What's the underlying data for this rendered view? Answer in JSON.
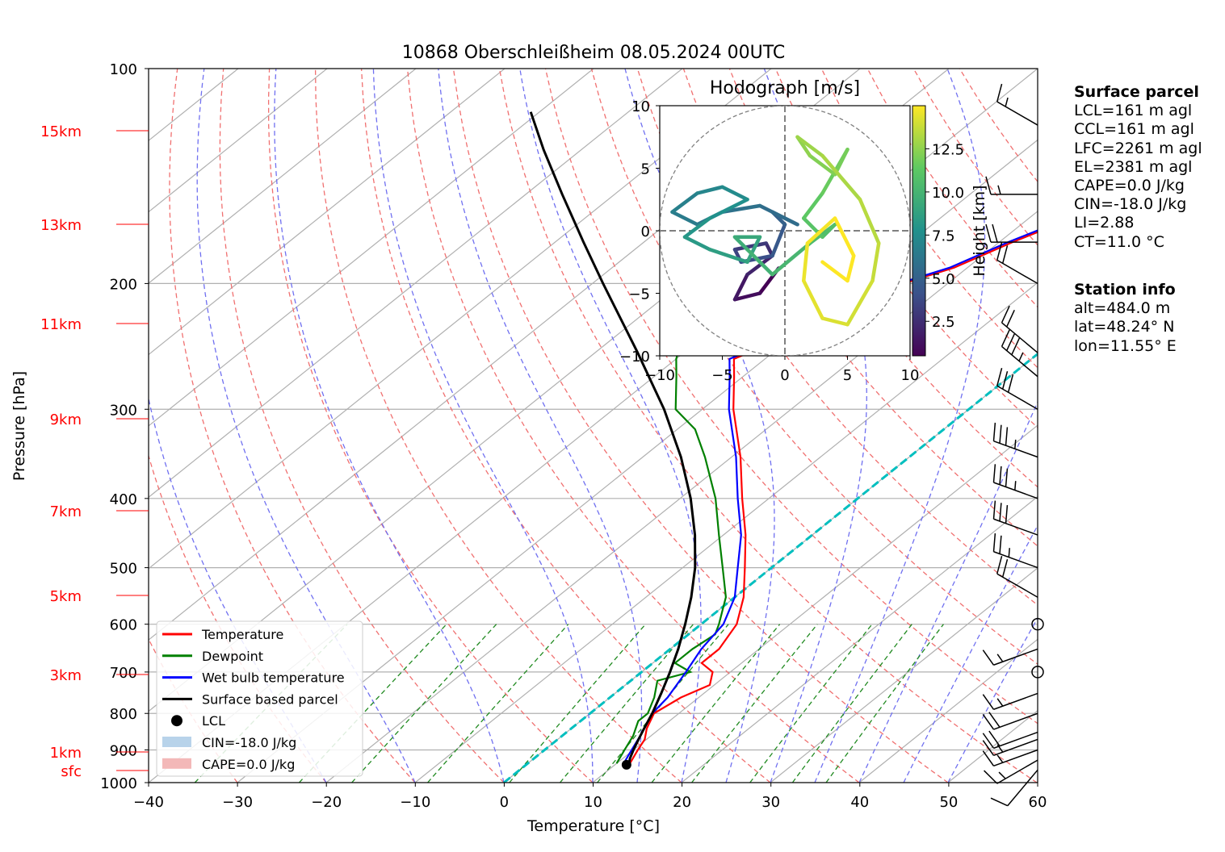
{
  "title": "10868 Oberschleißheim 08.05.2024 00UTC",
  "axes": {
    "xlabel": "Temperature [°C]",
    "ylabel": "Pressure [hPa]",
    "x_ticks": [
      "−40",
      "−30",
      "−20",
      "−10",
      "0",
      "10",
      "20",
      "30",
      "40",
      "50",
      "60"
    ],
    "p_ticks": [
      "100",
      "200",
      "300",
      "400",
      "500",
      "600",
      "700",
      "800",
      "900",
      "1000"
    ],
    "height_labels": [
      "15km",
      "13km",
      "11km",
      "9km",
      "7km",
      "5km",
      "3km",
      "1km",
      "sfc"
    ]
  },
  "legend": [
    {
      "label": "Temperature",
      "color": "#ff0000",
      "kind": "line"
    },
    {
      "label": "Dewpoint",
      "color": "#008000",
      "kind": "line"
    },
    {
      "label": "Wet bulb temperature",
      "color": "#0000ff",
      "kind": "line"
    },
    {
      "label": "Surface based parcel",
      "color": "#000000",
      "kind": "line"
    },
    {
      "label": "LCL",
      "color": "#000000",
      "kind": "dot"
    },
    {
      "label": "CIN=-18.0 J/kg",
      "color": "#b8d3ea",
      "kind": "patch"
    },
    {
      "label": "CAPE=0.0 J/kg",
      "color": "#f3b8b8",
      "kind": "patch"
    }
  ],
  "hodograph": {
    "title": "Hodograph [m/s]",
    "ticks": [
      "−10",
      "−5",
      "0",
      "5",
      "10"
    ],
    "colorbar_label": "Height [km]",
    "colorbar_ticks": [
      "2.5",
      "5.0",
      "7.5",
      "10.0",
      "12.5"
    ]
  },
  "surface_parcel": {
    "heading": "Surface parcel",
    "lines": [
      "LCL=161 m agl",
      "CCL=161 m agl",
      "LFC=2261 m agl",
      "EL=2381 m agl",
      "CAPE=0.0 J/kg",
      "CIN=-18.0 J/kg",
      "LI=2.88",
      "CT=11.0 °C"
    ]
  },
  "station_info": {
    "heading": "Station info",
    "lines": [
      "alt=484.0 m",
      "lat=48.24° N",
      "lon=11.55° E"
    ]
  },
  "chart_data": {
    "type": "line",
    "title": "10868 Oberschleißheim 08.05.2024 00UTC",
    "xlabel": "Temperature [°C]",
    "ylabel": "Pressure [hPa]",
    "xlim": [
      -40,
      60
    ],
    "ylim": [
      1000,
      100
    ],
    "y_scale": "log",
    "skew": "skew-T",
    "grid": true,
    "legend_position": "lower-left",
    "series": [
      {
        "name": "Temperature",
        "color": "#ff0000",
        "p": [
          940,
          900,
          870,
          840,
          800,
          760,
          730,
          700,
          680,
          650,
          600,
          550,
          500,
          450,
          400,
          350,
          300,
          270,
          255,
          240,
          225,
          210,
          200,
          190,
          175,
          160,
          150,
          140,
          130,
          122
        ],
        "t": [
          11.5,
          10.5,
          9.8,
          8.5,
          7.2,
          8.0,
          9.5,
          8.0,
          5.5,
          5.5,
          4.0,
          1.0,
          -3.0,
          -7.5,
          -13.0,
          -19.0,
          -26.5,
          -31.0,
          -33.5,
          -31.0,
          -28.5,
          -26.0,
          -25.0,
          -21.5,
          -18.5,
          -14.5,
          -11.5,
          -11.0,
          -6.0,
          -3.5
        ]
      },
      {
        "name": "Dewpoint",
        "color": "#008000",
        "p": [
          940,
          900,
          860,
          820,
          800,
          760,
          720,
          700,
          680,
          650,
          620,
          600,
          550,
          500,
          450,
          400,
          350,
          320,
          300,
          270,
          255,
          240,
          225,
          210,
          200,
          190,
          180,
          170,
          160,
          150,
          140,
          130,
          123
        ],
        "t": [
          10.0,
          9.0,
          8.0,
          6.5,
          6.5,
          5.0,
          3.0,
          5.5,
          2.5,
          2.5,
          3.0,
          2.0,
          -1.0,
          -5.5,
          -10.5,
          -16.0,
          -23.0,
          -28.0,
          -33.0,
          -37.5,
          -40.0,
          -42.0,
          -45.0,
          -47.0,
          -48.0,
          -50.0,
          -52.0,
          -54.0,
          -57.0,
          -58.0,
          -59.0,
          -61.0,
          -60.0
        ]
      },
      {
        "name": "Wet bulb temperature",
        "color": "#0000ff",
        "p": [
          940,
          900,
          860,
          800,
          760,
          700,
          650,
          600,
          550,
          500,
          450,
          400,
          350,
          300,
          270,
          255,
          240,
          225,
          210,
          200,
          190,
          175,
          160,
          150,
          140,
          130,
          122
        ],
        "t": [
          10.8,
          9.8,
          8.8,
          7.0,
          6.5,
          5.0,
          3.5,
          2.5,
          0.0,
          -3.8,
          -8.0,
          -13.5,
          -19.5,
          -27.0,
          -31.5,
          -34.0,
          -31.5,
          -29.0,
          -26.5,
          -25.5,
          -22.0,
          -19.0,
          -15.0,
          -12.0,
          -11.5,
          -6.5,
          -4.0
        ]
      },
      {
        "name": "Surface based parcel",
        "color": "#000000",
        "p": [
          955,
          925,
          900,
          870,
          840,
          800,
          750,
          700,
          650,
          600,
          550,
          500,
          450,
          400,
          350,
          300,
          250,
          200,
          175,
          150,
          130,
          115
        ],
        "t": [
          12.0,
          10.8,
          10.0,
          9.1,
          8.2,
          7.0,
          5.2,
          3.2,
          0.9,
          -1.8,
          -4.9,
          -8.6,
          -13.2,
          -18.8,
          -25.7,
          -34.3,
          -45.2,
          -58.8,
          -66.8,
          -75.9,
          -84.2,
          -91.0
        ]
      }
    ],
    "lcl": {
      "p": 944,
      "t": 11.3
    },
    "hodograph": {
      "xlim": [
        -10,
        10
      ],
      "ylim": [
        -10,
        10
      ],
      "u": [
        -0.5,
        -2.0,
        -4.0,
        -3.0,
        -1.0,
        -1.5,
        -4.0,
        -3.5,
        -1.0,
        0.0,
        -1.0,
        1.0,
        -2.0,
        -5.0,
        -7.0,
        -9.0,
        -7.0,
        -5.0,
        -3.0,
        -6.0,
        -8.0,
        -6.0,
        -3.0,
        -2.0,
        -4.0,
        -3.0,
        -1.0,
        2.0,
        4.0,
        3.0,
        1.5,
        3.0,
        5.0,
        4.0,
        2.0,
        1.0,
        3.0,
        6.0,
        7.5,
        7.0,
        5.0,
        3.0,
        1.5,
        1.8,
        4.0,
        5.5,
        5.0,
        3.0
      ],
      "v": [
        -3.0,
        -5.0,
        -5.5,
        -3.5,
        -2.0,
        -1.0,
        -1.5,
        -2.5,
        -2.0,
        0.5,
        1.5,
        0.5,
        2.0,
        1.5,
        0.5,
        1.5,
        3.0,
        3.5,
        2.5,
        1.0,
        -0.5,
        -1.5,
        -2.5,
        -0.5,
        -0.5,
        -1.5,
        -3.5,
        -1.0,
        0.5,
        -0.5,
        1.0,
        3.0,
        6.5,
        4.5,
        6.0,
        7.5,
        6.0,
        2.5,
        -1.0,
        -4.0,
        -7.5,
        -7.0,
        -4.0,
        -1.0,
        1.0,
        -2.0,
        -4.0,
        -2.5
      ],
      "h_km": [
        0.5,
        1,
        1.5,
        2,
        2.5,
        3,
        3.5,
        4,
        4.5,
        5,
        5.3,
        5.6,
        5.9,
        6.2,
        6.5,
        6.8,
        7.1,
        7.4,
        7.7,
        8,
        8.3,
        8.6,
        8.9,
        9.2,
        9.5,
        9.8,
        10.1,
        10.4,
        10.7,
        11,
        11.3,
        11.6,
        11.9,
        12.2,
        12.5,
        12.8,
        13.1,
        13.4,
        13.7,
        14,
        14.2,
        14.4,
        14.6,
        14.8,
        15,
        15.2,
        15.4,
        15.6
      ],
      "colorbar_range": [
        0.5,
        15
      ],
      "circle_radius": 10
    },
    "wind_barbs": {
      "p": [
        960,
        930,
        900,
        870,
        850,
        800,
        750,
        700,
        650,
        600,
        550,
        500,
        450,
        400,
        350,
        300,
        270,
        250,
        200,
        175,
        150,
        120
      ],
      "speed_kt": [
        10,
        15,
        15,
        15,
        20,
        20,
        15,
        0,
        15,
        0,
        20,
        25,
        30,
        35,
        35,
        30,
        35,
        20,
        20,
        20,
        15,
        15
      ],
      "dir_deg": [
        220,
        240,
        250,
        250,
        250,
        250,
        250,
        0,
        250,
        0,
        300,
        290,
        290,
        290,
        290,
        300,
        310,
        310,
        300,
        270,
        270,
        300
      ]
    }
  }
}
